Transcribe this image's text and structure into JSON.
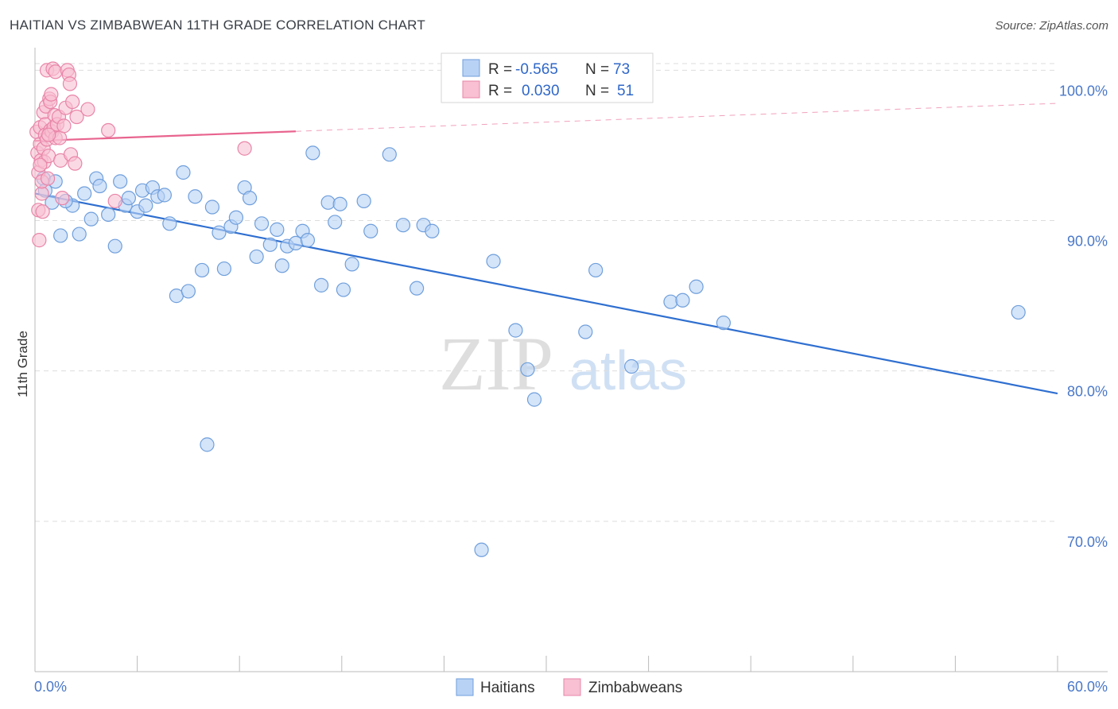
{
  "title": "HAITIAN VS ZIMBABWEAN 11TH GRADE CORRELATION CHART",
  "source": "Source: ZipAtlas.com",
  "watermark": {
    "zip": "ZIP",
    "atlas": "atlas"
  },
  "colors": {
    "haitians_fill": "#b8d2f5",
    "haitians_stroke": "#6f9fdc",
    "haitians_line": "#2f6fd0",
    "zimbabweans_fill": "#f8c0d2",
    "zimbabweans_stroke": "#e985a8",
    "zimbabweans_line": "#e8648f",
    "grid": "#dddddd",
    "tick_text": "#4a78c8"
  },
  "legend": {
    "r_label": "R =",
    "n_label": "N =",
    "entries": [
      {
        "r": "-0.565",
        "n": "73"
      },
      {
        "r": "0.030",
        "n": "51"
      }
    ]
  },
  "chart_data": {
    "type": "scatter",
    "title": "HAITIAN VS ZIMBABWEAN 11TH GRADE CORRELATION CHART",
    "xlabel": "",
    "ylabel": "11th Grade",
    "xlim": [
      0,
      60
    ],
    "ylim": [
      60,
      101.5
    ],
    "x_tick_labels": [
      "0.0%",
      "60.0%"
    ],
    "y_ticks": [
      70,
      80,
      90,
      100
    ],
    "y_tick_labels": [
      "70.0%",
      "80.0%",
      "90.0%",
      "100.0%"
    ],
    "grid": true,
    "legend_position": "bottom",
    "series": [
      {
        "name": "Haitians",
        "r": -0.565,
        "n": 73,
        "trend": {
          "x": [
            0,
            60
          ],
          "y": [
            91.8,
            78.5
          ],
          "solid_until_x": 60
        },
        "points": [
          [
            0.5,
            92.8
          ],
          [
            0.6,
            92.0
          ],
          [
            1.0,
            91.2
          ],
          [
            1.2,
            92.6
          ],
          [
            1.5,
            89.0
          ],
          [
            2.2,
            91.0
          ],
          [
            2.6,
            89.1
          ],
          [
            2.9,
            91.8
          ],
          [
            3.3,
            90.1
          ],
          [
            3.6,
            92.8
          ],
          [
            3.8,
            92.3
          ],
          [
            4.3,
            90.4
          ],
          [
            4.7,
            88.3
          ],
          [
            5.0,
            92.6
          ],
          [
            5.3,
            91.0
          ],
          [
            5.5,
            91.5
          ],
          [
            6.0,
            90.6
          ],
          [
            6.3,
            92.0
          ],
          [
            6.5,
            91.0
          ],
          [
            6.9,
            92.2
          ],
          [
            7.2,
            91.6
          ],
          [
            7.6,
            91.7
          ],
          [
            7.9,
            89.8
          ],
          [
            8.3,
            85.0
          ],
          [
            8.7,
            93.2
          ],
          [
            9.0,
            85.3
          ],
          [
            9.4,
            91.6
          ],
          [
            9.8,
            86.7
          ],
          [
            10.1,
            75.1
          ],
          [
            10.4,
            90.9
          ],
          [
            10.8,
            89.2
          ],
          [
            11.1,
            86.8
          ],
          [
            11.5,
            89.6
          ],
          [
            11.8,
            90.2
          ],
          [
            12.3,
            92.2
          ],
          [
            12.6,
            91.5
          ],
          [
            13.0,
            87.6
          ],
          [
            13.3,
            89.8
          ],
          [
            13.8,
            88.4
          ],
          [
            14.2,
            89.4
          ],
          [
            14.5,
            87.0
          ],
          [
            14.8,
            88.3
          ],
          [
            15.3,
            88.5
          ],
          [
            15.7,
            89.3
          ],
          [
            16.0,
            88.7
          ],
          [
            16.3,
            94.5
          ],
          [
            16.8,
            85.7
          ],
          [
            17.2,
            91.2
          ],
          [
            17.6,
            89.9
          ],
          [
            17.9,
            91.1
          ],
          [
            18.1,
            85.4
          ],
          [
            18.6,
            87.1
          ],
          [
            19.3,
            91.3
          ],
          [
            19.7,
            89.3
          ],
          [
            20.8,
            94.4
          ],
          [
            21.6,
            89.7
          ],
          [
            22.4,
            85.5
          ],
          [
            22.8,
            89.7
          ],
          [
            23.3,
            89.3
          ],
          [
            26.2,
            68.1
          ],
          [
            26.9,
            87.3
          ],
          [
            28.2,
            82.7
          ],
          [
            28.9,
            80.1
          ],
          [
            29.3,
            78.1
          ],
          [
            32.3,
            82.6
          ],
          [
            32.9,
            86.7
          ],
          [
            35.0,
            80.3
          ],
          [
            37.3,
            84.6
          ],
          [
            38.0,
            84.7
          ],
          [
            38.8,
            85.6
          ],
          [
            40.4,
            83.2
          ],
          [
            57.7,
            83.9
          ],
          [
            1.8,
            91.3
          ]
        ]
      },
      {
        "name": "Zimbabweans",
        "r": 0.03,
        "n": 51,
        "trend": {
          "x": [
            0,
            60
          ],
          "y": [
            95.3,
            97.8
          ],
          "solid_until_x": 15.3
        },
        "points": [
          [
            0.1,
            95.9
          ],
          [
            0.15,
            94.5
          ],
          [
            0.2,
            93.2
          ],
          [
            0.2,
            90.7
          ],
          [
            0.25,
            88.7
          ],
          [
            0.3,
            95.1
          ],
          [
            0.3,
            96.2
          ],
          [
            0.35,
            94.0
          ],
          [
            0.4,
            91.8
          ],
          [
            0.4,
            92.6
          ],
          [
            0.5,
            97.2
          ],
          [
            0.5,
            94.8
          ],
          [
            0.55,
            93.9
          ],
          [
            0.6,
            96.4
          ],
          [
            0.6,
            95.7
          ],
          [
            0.65,
            97.6
          ],
          [
            0.7,
            100.0
          ],
          [
            0.7,
            95.4
          ],
          [
            0.75,
            92.8
          ],
          [
            0.8,
            94.3
          ],
          [
            0.85,
            98.1
          ],
          [
            0.9,
            96.0
          ],
          [
            0.9,
            97.9
          ],
          [
            0.95,
            98.4
          ],
          [
            1.0,
            95.9
          ],
          [
            1.05,
            100.1
          ],
          [
            1.1,
            96.2
          ],
          [
            1.15,
            97.0
          ],
          [
            1.2,
            95.5
          ],
          [
            1.2,
            99.9
          ],
          [
            1.3,
            96.4
          ],
          [
            1.4,
            96.9
          ],
          [
            1.45,
            95.5
          ],
          [
            1.5,
            94.0
          ],
          [
            1.6,
            91.5
          ],
          [
            1.7,
            96.3
          ],
          [
            1.9,
            100.0
          ],
          [
            1.8,
            97.5
          ],
          [
            2.0,
            99.7
          ],
          [
            2.05,
            99.1
          ],
          [
            2.1,
            94.4
          ],
          [
            2.2,
            97.9
          ],
          [
            2.35,
            93.8
          ],
          [
            2.45,
            96.9
          ],
          [
            3.1,
            97.4
          ],
          [
            4.3,
            96.0
          ],
          [
            4.7,
            91.3
          ],
          [
            12.3,
            94.8
          ],
          [
            0.45,
            90.6
          ],
          [
            0.3,
            93.7
          ],
          [
            0.8,
            95.7
          ]
        ]
      }
    ]
  }
}
